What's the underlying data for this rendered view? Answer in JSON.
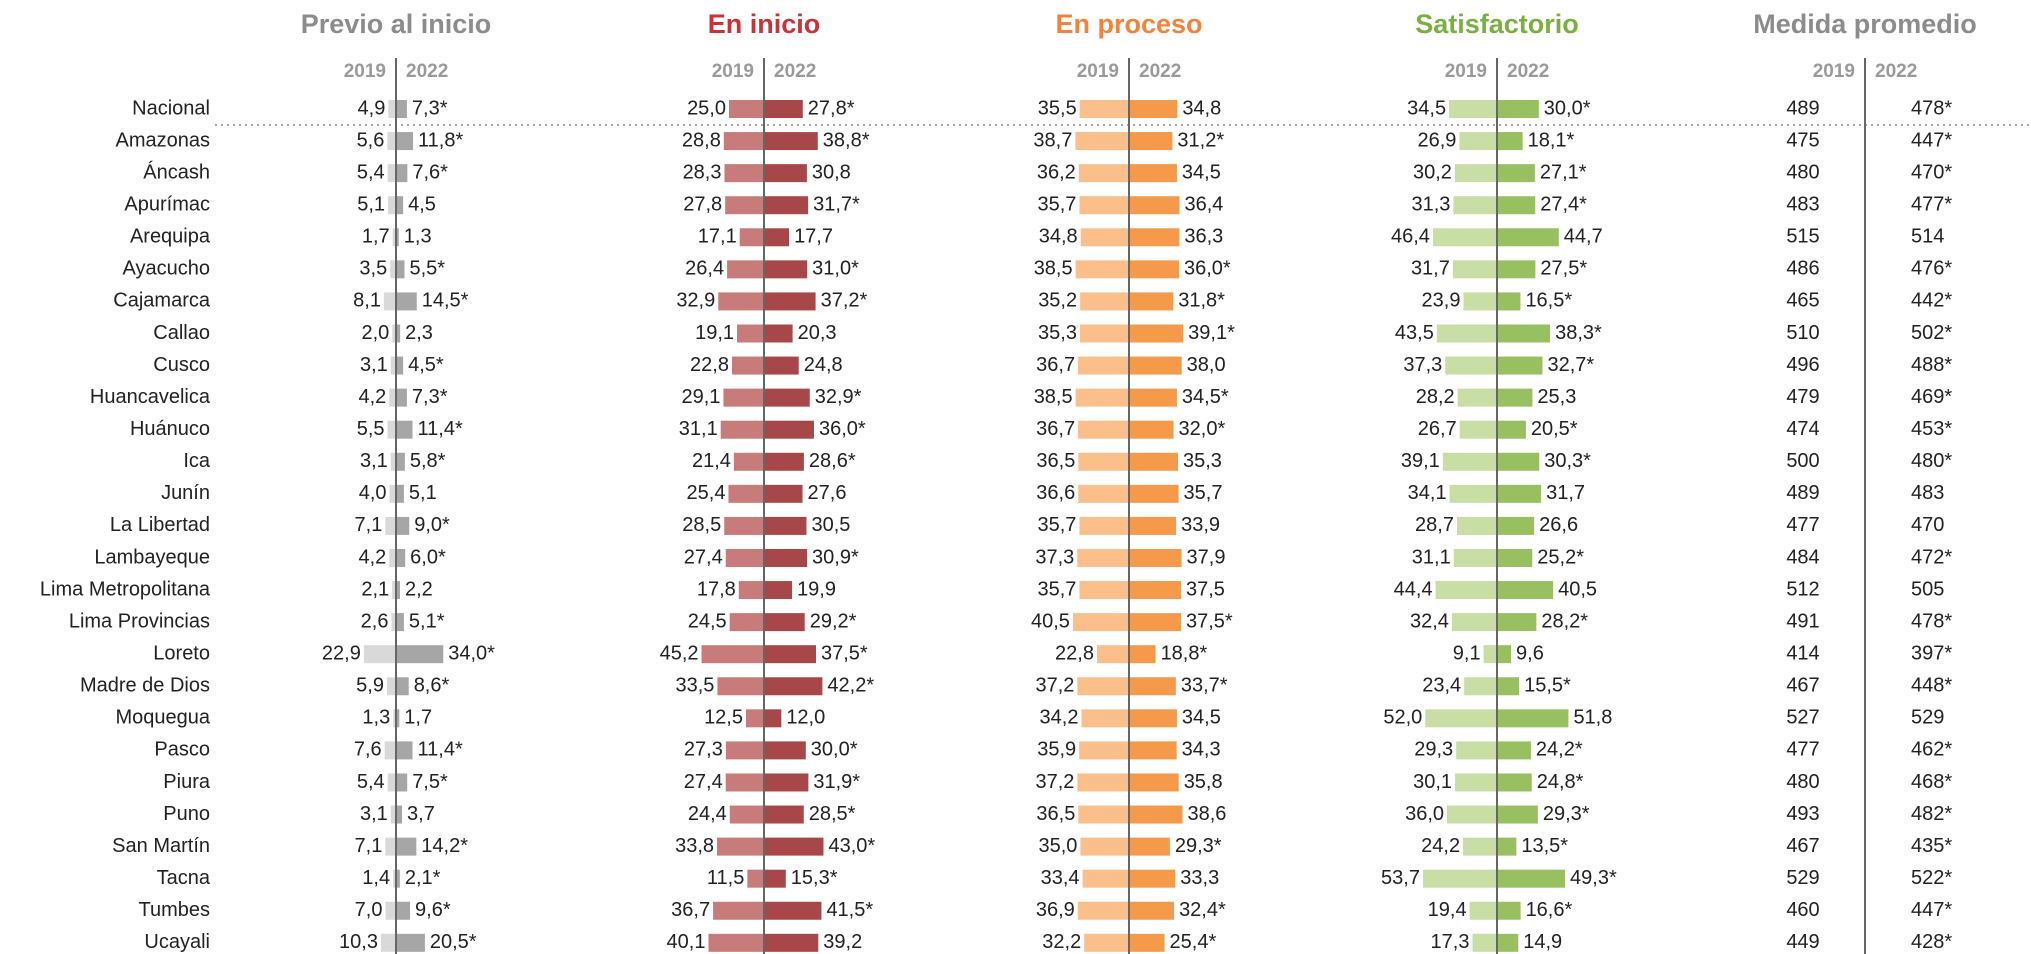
{
  "chart_data": [
    {
      "type": "bar",
      "title": "Previo al inicio",
      "title_color": "#8c8c8c",
      "categories": [
        "Nacional",
        "Amazonas",
        "Áncash",
        "Apurímac",
        "Arequipa",
        "Ayacucho",
        "Cajamarca",
        "Callao",
        "Cusco",
        "Huancavelica",
        "Huánuco",
        "Ica",
        "Junín",
        "La Libertad",
        "Lambayeque",
        "Lima Metropolitana",
        "Lima Provincias",
        "Loreto",
        "Madre de Dios",
        "Moquegua",
        "Pasco",
        "Piura",
        "Puno",
        "San Martín",
        "Tacna",
        "Tumbes",
        "Ucayali"
      ],
      "series": [
        {
          "name": "2019",
          "color": "#d9d9d9",
          "values": [
            4.9,
            5.6,
            5.4,
            5.1,
            1.7,
            3.5,
            8.1,
            2.0,
            3.1,
            4.2,
            5.5,
            3.1,
            4.0,
            7.1,
            4.2,
            2.1,
            2.6,
            22.9,
            5.9,
            1.3,
            7.6,
            5.4,
            3.1,
            7.1,
            1.4,
            7.0,
            10.3
          ],
          "value_labels": [
            "4,9",
            "5,6",
            "5,4",
            "5,1",
            "1,7",
            "3,5",
            "8,1",
            "2,0",
            "3,1",
            "4,2",
            "5,5",
            "3,1",
            "4,0",
            "7,1",
            "4,2",
            "2,1",
            "2,6",
            "22,9",
            "5,9",
            "1,3",
            "7,6",
            "5,4",
            "3,1",
            "7,1",
            "1,4",
            "7,0",
            "10,3"
          ]
        },
        {
          "name": "2022",
          "color": "#a6a6a6",
          "values": [
            7.3,
            11.8,
            7.6,
            4.5,
            1.3,
            5.5,
            14.5,
            2.3,
            4.5,
            7.3,
            11.4,
            5.8,
            5.1,
            9.0,
            6.0,
            2.2,
            5.1,
            34.0,
            8.6,
            1.7,
            11.4,
            7.5,
            3.7,
            14.2,
            2.1,
            9.6,
            20.5
          ],
          "value_labels": [
            "7,3*",
            "11,8*",
            "7,6*",
            "4,5",
            "1,3",
            "5,5*",
            "14,5*",
            "2,3",
            "4,5*",
            "7,3*",
            "11,4*",
            "5,8*",
            "5,1",
            "9,0*",
            "6,0*",
            "2,2",
            "5,1*",
            "34,0*",
            "8,6*",
            "1,7",
            "11,4*",
            "7,5*",
            "3,7",
            "14,2*",
            "2,1*",
            "9,6*",
            "20,5*"
          ]
        }
      ]
    },
    {
      "type": "bar",
      "title": "En inicio",
      "title_color": "#c8323a",
      "series": [
        {
          "name": "2019",
          "color": "#c87b7b",
          "values": [
            25.0,
            28.8,
            28.3,
            27.8,
            17.1,
            26.4,
            32.9,
            19.1,
            22.8,
            29.1,
            31.1,
            21.4,
            25.4,
            28.5,
            27.4,
            17.8,
            24.5,
            45.2,
            33.5,
            12.5,
            27.3,
            27.4,
            24.4,
            33.8,
            11.5,
            36.7,
            40.1
          ],
          "value_labels": [
            "25,0",
            "28,8",
            "28,3",
            "27,8",
            "17,1",
            "26,4",
            "32,9",
            "19,1",
            "22,8",
            "29,1",
            "31,1",
            "21,4",
            "25,4",
            "28,5",
            "27,4",
            "17,8",
            "24,5",
            "45,2",
            "33,5",
            "12,5",
            "27,3",
            "27,4",
            "24,4",
            "33,8",
            "11,5",
            "36,7",
            "40,1"
          ]
        },
        {
          "name": "2022",
          "color": "#a8474a",
          "values": [
            27.8,
            38.8,
            30.8,
            31.7,
            17.7,
            31.0,
            37.2,
            20.3,
            24.8,
            32.9,
            36.0,
            28.6,
            27.6,
            30.5,
            30.9,
            19.9,
            29.2,
            37.5,
            42.2,
            12.0,
            30.0,
            31.9,
            28.5,
            43.0,
            15.3,
            41.5,
            39.2
          ],
          "value_labels": [
            "27,8*",
            "38,8*",
            "30,8",
            "31,7*",
            "17,7",
            "31,0*",
            "37,2*",
            "20,3",
            "24,8",
            "32,9*",
            "36,0*",
            "28,6*",
            "27,6",
            "30,5",
            "30,9*",
            "19,9",
            "29,2*",
            "37,5*",
            "42,2*",
            "12,0",
            "30,0*",
            "31,9*",
            "28,5*",
            "43,0*",
            "15,3*",
            "41,5*",
            "39,2"
          ]
        }
      ]
    },
    {
      "type": "bar",
      "title": "En proceso",
      "title_color": "#f0843c",
      "series": [
        {
          "name": "2019",
          "color": "#fbbf8c",
          "values": [
            35.5,
            38.7,
            36.2,
            35.7,
            34.8,
            38.5,
            35.2,
            35.3,
            36.7,
            38.5,
            36.7,
            36.5,
            36.6,
            35.7,
            37.3,
            35.7,
            40.5,
            22.8,
            37.2,
            34.2,
            35.9,
            37.2,
            36.5,
            35.0,
            33.4,
            36.9,
            32.2
          ],
          "value_labels": [
            "35,5",
            "38,7",
            "36,2",
            "35,7",
            "34,8",
            "38,5",
            "35,2",
            "35,3",
            "36,7",
            "38,5",
            "36,7",
            "36,5",
            "36,6",
            "35,7",
            "37,3",
            "35,7",
            "40,5",
            "22,8",
            "37,2",
            "34,2",
            "35,9",
            "37,2",
            "36,5",
            "35,0",
            "33,4",
            "36,9",
            "32,2"
          ]
        },
        {
          "name": "2022",
          "color": "#f49a4a",
          "values": [
            34.8,
            31.2,
            34.5,
            36.4,
            36.3,
            36.0,
            31.8,
            39.1,
            38.0,
            34.5,
            32.0,
            35.3,
            35.7,
            33.9,
            37.9,
            37.5,
            37.5,
            18.8,
            33.7,
            34.5,
            34.3,
            35.8,
            38.6,
            29.3,
            33.3,
            32.4,
            25.4
          ],
          "value_labels": [
            "34,8",
            "31,2*",
            "34,5",
            "36,4",
            "36,3",
            "36,0*",
            "31,8*",
            "39,1*",
            "38,0",
            "34,5*",
            "32,0*",
            "35,3",
            "35,7",
            "33,9",
            "37,9",
            "37,5",
            "37,5*",
            "18,8*",
            "33,7*",
            "34,5",
            "34,3",
            "35,8",
            "38,6",
            "29,3*",
            "33,3",
            "32,4*",
            "25,4*"
          ]
        }
      ]
    },
    {
      "type": "bar",
      "title": "Satisfactorio",
      "title_color": "#7ab040",
      "series": [
        {
          "name": "2019",
          "color": "#c8dea4",
          "values": [
            34.5,
            26.9,
            30.2,
            31.3,
            46.4,
            31.7,
            23.9,
            43.5,
            37.3,
            28.2,
            26.7,
            39.1,
            34.1,
            28.7,
            31.1,
            44.4,
            32.4,
            9.1,
            23.4,
            52.0,
            29.3,
            30.1,
            36.0,
            24.2,
            53.7,
            19.4,
            17.3
          ],
          "value_labels": [
            "34,5",
            "26,9",
            "30,2",
            "31,3",
            "46,4",
            "31,7",
            "23,9",
            "43,5",
            "37,3",
            "28,2",
            "26,7",
            "39,1",
            "34,1",
            "28,7",
            "31,1",
            "44,4",
            "32,4",
            "9,1",
            "23,4",
            "52,0",
            "29,3",
            "30,1",
            "36,0",
            "24,2",
            "53,7",
            "19,4",
            "17,3"
          ]
        },
        {
          "name": "2022",
          "color": "#98c060",
          "values": [
            30.0,
            18.1,
            27.1,
            27.4,
            44.7,
            27.5,
            16.5,
            38.3,
            32.7,
            25.3,
            20.5,
            30.3,
            31.7,
            26.6,
            25.2,
            40.5,
            28.2,
            9.6,
            15.5,
            51.8,
            24.2,
            24.8,
            29.3,
            13.5,
            49.3,
            16.6,
            14.9
          ],
          "value_labels": [
            "30,0*",
            "18,1*",
            "27,1*",
            "27,4*",
            "44,7",
            "27,5*",
            "16,5*",
            "38,3*",
            "32,7*",
            "25,3",
            "20,5*",
            "30,3*",
            "31,7",
            "26,6",
            "25,2*",
            "40,5",
            "28,2*",
            "9,6",
            "15,5*",
            "51,8",
            "24,2*",
            "24,8*",
            "29,3*",
            "13,5*",
            "49,3*",
            "16,6*",
            "14,9"
          ]
        }
      ]
    },
    {
      "type": "table",
      "title": "Medida promedio",
      "title_color": "#8c8c8c",
      "series": [
        {
          "name": "2019",
          "values": [
            489,
            475,
            480,
            483,
            515,
            486,
            465,
            510,
            496,
            479,
            474,
            500,
            489,
            477,
            484,
            512,
            491,
            414,
            467,
            527,
            477,
            480,
            493,
            467,
            529,
            460,
            449
          ]
        },
        {
          "name": "2022",
          "values": [
            478,
            447,
            470,
            477,
            514,
            476,
            442,
            502,
            488,
            469,
            453,
            480,
            483,
            470,
            472,
            505,
            478,
            397,
            448,
            529,
            462,
            468,
            482,
            435,
            522,
            447,
            428
          ],
          "value_labels": [
            "478*",
            "447*",
            "470*",
            "477*",
            "514",
            "476*",
            "442*",
            "502*",
            "488*",
            "469*",
            "453*",
            "480*",
            "483",
            "470",
            "472*",
            "505",
            "478*",
            "397*",
            "448*",
            "529",
            "462*",
            "468*",
            "482*",
            "435*",
            "522*",
            "447*",
            "428*"
          ]
        }
      ]
    }
  ]
}
